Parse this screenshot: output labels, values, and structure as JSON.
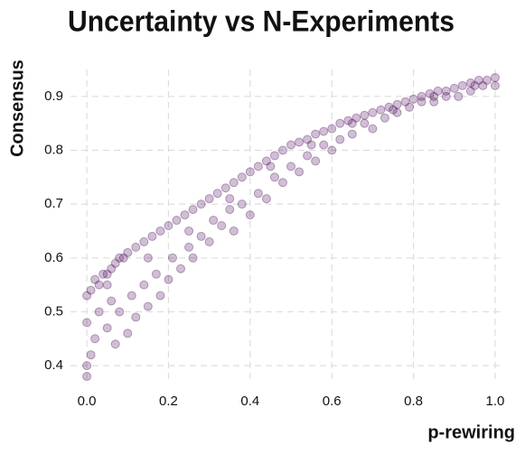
{
  "chart_data": {
    "type": "scatter",
    "title": "Uncertainty vs N-Experiments",
    "xlabel": "p-rewiring",
    "ylabel": "Consensus",
    "color": "#440154",
    "grid": true,
    "xlim": [
      -0.04,
      1.02
    ],
    "ylim": [
      0.37,
      0.95
    ],
    "xticks": [
      {
        "value": 0,
        "label": "0.0"
      },
      0.2,
      0.4,
      0.6,
      0.8,
      {
        "value": 1,
        "label": "1.0"
      }
    ],
    "yticks": [
      0.4,
      0.5,
      0.6,
      0.7,
      0.8,
      0.9
    ],
    "x": [
      0,
      0.01,
      0.02,
      0.03,
      0.04,
      0.05,
      0.06,
      0.07,
      0.08,
      0.09,
      0.1,
      0.12,
      0.14,
      0.16,
      0.18,
      0.2,
      0.22,
      0.24,
      0.26,
      0.28,
      0.3,
      0.32,
      0.34,
      0.36,
      0.38,
      0.4,
      0.42,
      0.44,
      0.46,
      0.48,
      0.5,
      0.52,
      0.54,
      0.56,
      0.58,
      0.6,
      0.62,
      0.64,
      0.66,
      0.68,
      0.7,
      0.72,
      0.74,
      0.76,
      0.78,
      0.8,
      0.82,
      0.84,
      0.86,
      0.88,
      0.9,
      0.92,
      0.94,
      0.96,
      0.98,
      1,
      0,
      0,
      0.01,
      0,
      0.02,
      0.03,
      0.05,
      0.06,
      0.07,
      0.08,
      0.1,
      0.11,
      0.12,
      0.14,
      0.15,
      0.17,
      0.18,
      0.2,
      0.21,
      0.23,
      0.25,
      0.26,
      0.28,
      0.3,
      0.31,
      0.33,
      0.35,
      0.36,
      0.38,
      0.4,
      0.42,
      0.44,
      0.46,
      0.48,
      0.5,
      0.52,
      0.54,
      0.56,
      0.58,
      0.6,
      0.62,
      0.65,
      0.68,
      0.7,
      0.73,
      0.76,
      0.79,
      0.82,
      0.85,
      0.88,
      0.91,
      0.94,
      0.97,
      1,
      0.05,
      0.15,
      0.25,
      0.35,
      0.45,
      0.55,
      0.65,
      0.75,
      0.85,
      0.95
    ],
    "y": [
      0.53,
      0.54,
      0.56,
      0.55,
      0.57,
      0.57,
      0.58,
      0.59,
      0.6,
      0.6,
      0.61,
      0.62,
      0.63,
      0.64,
      0.65,
      0.66,
      0.67,
      0.68,
      0.69,
      0.7,
      0.71,
      0.72,
      0.73,
      0.74,
      0.75,
      0.76,
      0.77,
      0.78,
      0.79,
      0.8,
      0.81,
      0.815,
      0.82,
      0.83,
      0.835,
      0.84,
      0.85,
      0.855,
      0.86,
      0.865,
      0.87,
      0.875,
      0.88,
      0.885,
      0.89,
      0.895,
      0.9,
      0.905,
      0.91,
      0.91,
      0.915,
      0.92,
      0.925,
      0.93,
      0.93,
      0.935,
      0.38,
      0.4,
      0.42,
      0.48,
      0.45,
      0.5,
      0.47,
      0.52,
      0.44,
      0.5,
      0.46,
      0.53,
      0.49,
      0.55,
      0.51,
      0.57,
      0.53,
      0.56,
      0.6,
      0.58,
      0.62,
      0.6,
      0.64,
      0.63,
      0.67,
      0.66,
      0.69,
      0.65,
      0.7,
      0.68,
      0.72,
      0.71,
      0.75,
      0.74,
      0.77,
      0.76,
      0.79,
      0.78,
      0.81,
      0.8,
      0.82,
      0.83,
      0.85,
      0.84,
      0.86,
      0.87,
      0.88,
      0.89,
      0.89,
      0.9,
      0.9,
      0.91,
      0.92,
      0.92,
      0.55,
      0.6,
      0.65,
      0.71,
      0.77,
      0.81,
      0.85,
      0.875,
      0.9,
      0.92
    ]
  }
}
